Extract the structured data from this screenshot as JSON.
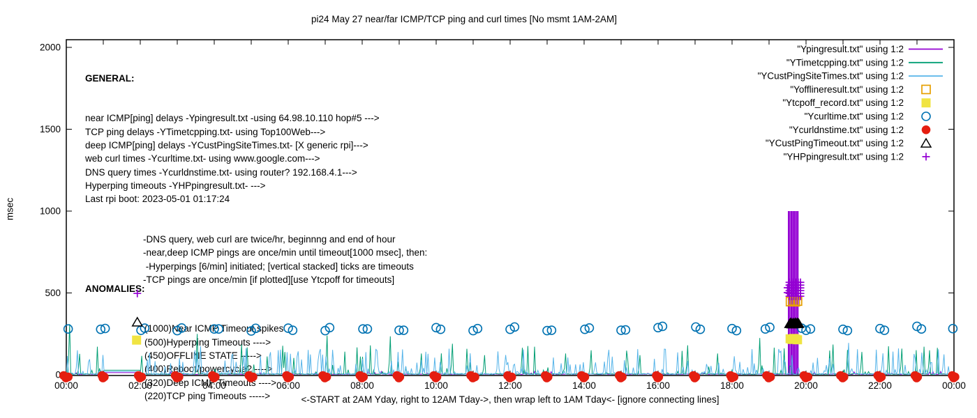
{
  "window": {
    "title": "pi24 May 27  near/far ICMP/TCP ping and curl times [No msmt 1AM-2AM]"
  },
  "colors": {
    "purple": "#9400d3",
    "teal": "#009e73",
    "skyblue": "#56b4e9",
    "orange": "#e69f00",
    "yellow": "#f0e442",
    "blue": "#0072b2",
    "red": "#e51e10",
    "black": "#000000"
  },
  "general": {
    "heading": "GENERAL:",
    "lines": [
      "near ICMP[ping] delays -Ypingresult.txt -using 64.98.10.110 hop#5 --->",
      "TCP ping delays -YTimetcpping.txt- using Top100Web--->",
      "deep ICMP[ping] delays -YCustPingSiteTimes.txt- [X generic rpi]--->",
      "web curl times -Ycurltime.txt- using www.google.com--->",
      "DNS query times -Ycurldnstime.txt- using router? 192.168.4.1--->",
      "Hyperping timeouts -YHPpingresult.txt- --->",
      "Last rpi boot: 2023-05-01 01:17:24"
    ],
    "notes": [
      "-DNS query, web curl are twice/hr, beginnng and end of hour",
      "-near,deep ICMP pings are once/min until timeout[1000 msec], then:",
      " -Hyperpings [6/min] initiated; [vertical stacked] ticks are timeouts",
      "-TCP pings are once/min [if plotted][use Ytcpoff for timeouts]"
    ]
  },
  "anomalies": {
    "heading": "ANOMALIES:",
    "lines": [
      "(1000)Near ICMP Timeout spikes",
      "(500)Hyperping Timeouts ---->",
      "(450)OFFLINE STATE ----->",
      "(400)Reboot/powercycle? ---->",
      "(320)Deep ICMP Timeouts ---->",
      "(220)TCP ping Timeouts ----->"
    ]
  },
  "chart_data": {
    "type": "line",
    "title": "pi24 May 27  near/far ICMP/TCP ping and curl times [No msmt 1AM-2AM]",
    "xlabel": "<-START at 2AM Yday, right to 12AM Tday->, then wrap left to 1AM Tday<- [ignore connecting lines]",
    "ylabel": "msec",
    "x_range_hours": [
      0,
      24
    ],
    "ylim": [
      0,
      2050
    ],
    "y_ticks": [
      0,
      500,
      1000,
      1500,
      2000
    ],
    "x_tick_labels": [
      "00:00",
      "02:00",
      "04:00",
      "06:00",
      "08:00",
      "10:00",
      "12:00",
      "14:00",
      "16:00",
      "18:00",
      "20:00",
      "22:00",
      "00:00"
    ],
    "grid": "off",
    "legend_position": "top-right",
    "no_measurement_gap_hours": [
      1.02,
      2.03
    ],
    "series": [
      {
        "name": "Ypingresult",
        "legend_label": "\"Ypingresult.txt\" using 1:2",
        "color": "#9400d3",
        "style": "line",
        "noise": {
          "prob": 0.05,
          "min": 4,
          "amp": 18,
          "pow": 1.0,
          "base": 2,
          "jitter": 3,
          "gap_value": 13
        },
        "timeout_spike_hours": [
          19.53,
          19.565,
          19.605,
          19.64,
          19.675,
          19.71,
          19.75,
          19.785
        ],
        "timeout_value_msec": 1000
      },
      {
        "name": "YTimetcpping",
        "legend_label": "\"YTimetcpping.txt\" using 1:2",
        "color": "#009e73",
        "style": "line",
        "noise": {
          "prob": 0.085,
          "min": 10,
          "amp": 170,
          "pow": 2.0,
          "base": 2,
          "jitter": 5,
          "gap_value": 28
        },
        "spikes": [
          [
            0.08,
            310
          ],
          [
            0.35,
            128
          ],
          [
            3.55,
            250
          ],
          [
            4.73,
            185
          ],
          [
            5.9,
            140
          ],
          [
            7.05,
            240
          ],
          [
            8.77,
            235
          ],
          [
            9.6,
            130
          ],
          [
            10.45,
            190
          ],
          [
            11.3,
            120
          ],
          [
            12.32,
            165
          ],
          [
            13.5,
            130
          ],
          [
            14.2,
            150
          ],
          [
            15.5,
            120
          ],
          [
            16.8,
            180
          ],
          [
            17.6,
            130
          ],
          [
            18.75,
            225
          ],
          [
            20.72,
            185
          ],
          [
            21.5,
            140
          ],
          [
            22.6,
            160
          ],
          [
            23.35,
            150
          ]
        ]
      },
      {
        "name": "YCustPingSiteTimes",
        "legend_label": "\"YCustPingSiteTimes.txt\" using 1:2",
        "color": "#56b4e9",
        "style": "line",
        "noise": {
          "prob": 0.3,
          "min": 12,
          "amp": 150,
          "pow": 1.7,
          "base": 2,
          "jitter": 7,
          "gap_value": 20
        },
        "spikes": [
          [
            0.3,
            150
          ],
          [
            3.63,
            175
          ],
          [
            21.15,
            195
          ]
        ]
      },
      {
        "name": "Yofflineresult",
        "legend_label": "\"Yofflineresult.txt\" using 1:2",
        "color": "#e69f00",
        "style": "open-square",
        "points": [
          [
            19.58,
            447
          ],
          [
            19.645,
            452
          ],
          [
            19.71,
            446
          ],
          [
            19.77,
            450
          ]
        ]
      },
      {
        "name": "Ytcpoff_record",
        "legend_label": "\"Ytcpoff_record.txt\" using 1:2",
        "color": "#f0e442",
        "style": "filled-square",
        "points": [
          [
            1.9,
            212
          ],
          [
            19.57,
            220
          ],
          [
            19.62,
            216
          ],
          [
            19.67,
            222
          ],
          [
            19.72,
            218
          ],
          [
            19.77,
            214
          ]
        ]
      },
      {
        "name": "Ycurltime",
        "legend_label": "\"Ycurltime.txt\" using 1:2",
        "color": "#0072b2",
        "style": "open-circle",
        "points": [
          [
            0.05,
            280
          ],
          [
            0.93,
            278
          ],
          [
            1.05,
            283
          ],
          [
            2.02,
            272
          ],
          [
            2.12,
            285
          ],
          [
            3.0,
            270
          ],
          [
            3.12,
            286
          ],
          [
            4.0,
            280
          ],
          [
            4.12,
            280
          ],
          [
            5.0,
            268
          ],
          [
            5.12,
            284
          ],
          [
            6.0,
            285
          ],
          [
            6.12,
            272
          ],
          [
            7.0,
            270
          ],
          [
            7.12,
            288
          ],
          [
            8.02,
            280
          ],
          [
            8.14,
            280
          ],
          [
            9.0,
            272
          ],
          [
            9.12,
            272
          ],
          [
            10.0,
            288
          ],
          [
            10.12,
            278
          ],
          [
            11.0,
            270
          ],
          [
            11.12,
            282
          ],
          [
            12.0,
            278
          ],
          [
            12.12,
            292
          ],
          [
            13.0,
            270
          ],
          [
            13.12,
            272
          ],
          [
            14.02,
            278
          ],
          [
            14.14,
            286
          ],
          [
            15.0,
            272
          ],
          [
            15.12,
            274
          ],
          [
            16.0,
            288
          ],
          [
            16.12,
            296
          ],
          [
            17.02,
            292
          ],
          [
            17.14,
            278
          ],
          [
            18.0,
            282
          ],
          [
            18.12,
            270
          ],
          [
            18.9,
            280
          ],
          [
            19.02,
            290
          ],
          [
            19.88,
            285
          ],
          [
            20.0,
            272
          ],
          [
            20.12,
            280
          ],
          [
            21.0,
            278
          ],
          [
            21.12,
            270
          ],
          [
            22.0,
            282
          ],
          [
            22.12,
            272
          ],
          [
            23.0,
            296
          ],
          [
            23.12,
            280
          ],
          [
            23.97,
            282
          ]
        ]
      },
      {
        "name": "Ycurldnstime",
        "legend_label": "\"Ycurldnstime.txt\" using 1:2",
        "color": "#e51e10",
        "style": "filled-circle",
        "points_hours": [
          0,
          1,
          2,
          3,
          4,
          5,
          6,
          7,
          8,
          9,
          10,
          11,
          12,
          13,
          14,
          15,
          16,
          17,
          18,
          19,
          20,
          21,
          22,
          23,
          24
        ],
        "value_msec": 0
      },
      {
        "name": "YCustPingTimeout",
        "legend_label": "\"YCustPingTimeout.txt\" using 1:2",
        "color": "#000000",
        "style": "open-triangle",
        "points": [
          [
            1.92,
            322,
            0
          ],
          [
            19.56,
            312,
            1
          ],
          [
            19.59,
            318,
            1
          ],
          [
            19.62,
            310,
            1
          ],
          [
            19.65,
            316,
            1
          ],
          [
            19.68,
            311,
            1
          ],
          [
            19.71,
            318,
            1
          ],
          [
            19.74,
            312,
            1
          ],
          [
            19.77,
            317,
            1
          ],
          [
            19.8,
            313,
            1
          ]
        ]
      },
      {
        "name": "YHPpingresult",
        "legend_label": "\"YHPpingresult.txt\" using 1:2",
        "color": "#9400d3",
        "style": "plus",
        "grid_points": {
          "hours": [
            19.55,
            19.61,
            19.67,
            19.73,
            19.79,
            19.85
          ],
          "values": [
            480,
            497,
            514,
            531,
            548,
            565
          ]
        },
        "extra_points": [
          [
            1.92,
            497
          ],
          [
            19.5,
            532
          ],
          [
            19.5,
            502
          ]
        ]
      }
    ]
  }
}
